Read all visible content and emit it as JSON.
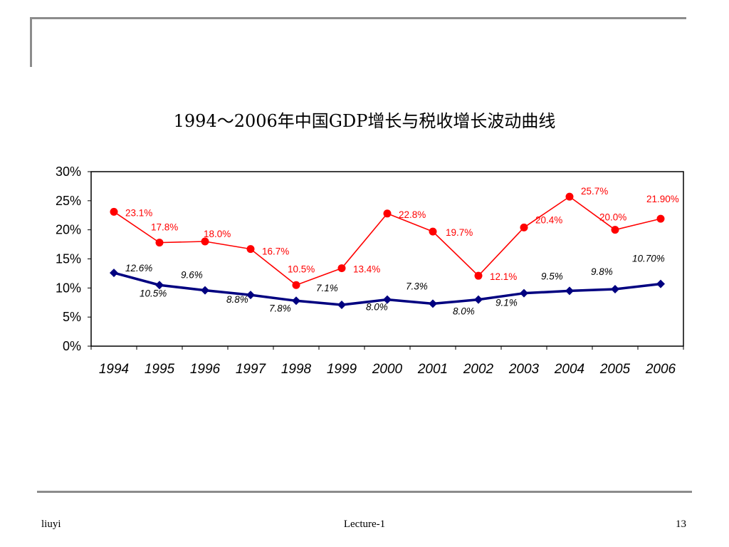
{
  "slide": {
    "footer_left": "liuyi",
    "footer_center": "Lecture-1",
    "page_number": "13"
  },
  "chart_data": {
    "type": "line",
    "title": "1994～2006年中国GDP增长与税收增长波动曲线",
    "categories": [
      "1994",
      "1995",
      "1996",
      "1997",
      "1998",
      "1999",
      "2000",
      "2001",
      "2002",
      "2003",
      "2004",
      "2005",
      "2006"
    ],
    "ylim": [
      0,
      30
    ],
    "ytick_labels": [
      "0%",
      "5%",
      "10%",
      "15%",
      "20%",
      "25%",
      "30%"
    ],
    "grid": false,
    "series": [
      {
        "color": "#ff0000",
        "marker": "circle",
        "values": [
          23.1,
          17.8,
          18.0,
          16.7,
          10.5,
          13.4,
          22.8,
          19.7,
          12.1,
          20.4,
          25.7,
          20.0,
          21.9
        ],
        "labels": [
          "23.1%",
          "17.8%",
          "18.0%",
          "16.7%",
          "10.5%",
          "13.4%",
          "22.8%",
          "19.7%",
          "12.1%",
          "20.4%",
          "25.7%",
          "20.0%",
          "21.90%"
        ]
      },
      {
        "color": "#000080",
        "marker": "diamond",
        "values": [
          12.6,
          10.5,
          9.6,
          8.8,
          7.8,
          7.1,
          8.0,
          7.3,
          8.0,
          9.1,
          9.5,
          9.8,
          10.7
        ],
        "labels": [
          "12.6%",
          "10.5%",
          "9.6%",
          "8.8%",
          "7.8%",
          "7.1%",
          "8.0%",
          "7.3%",
          "8.0%",
          "9.1%",
          "9.5%",
          "9.8%",
          "10.70%"
        ]
      }
    ]
  }
}
